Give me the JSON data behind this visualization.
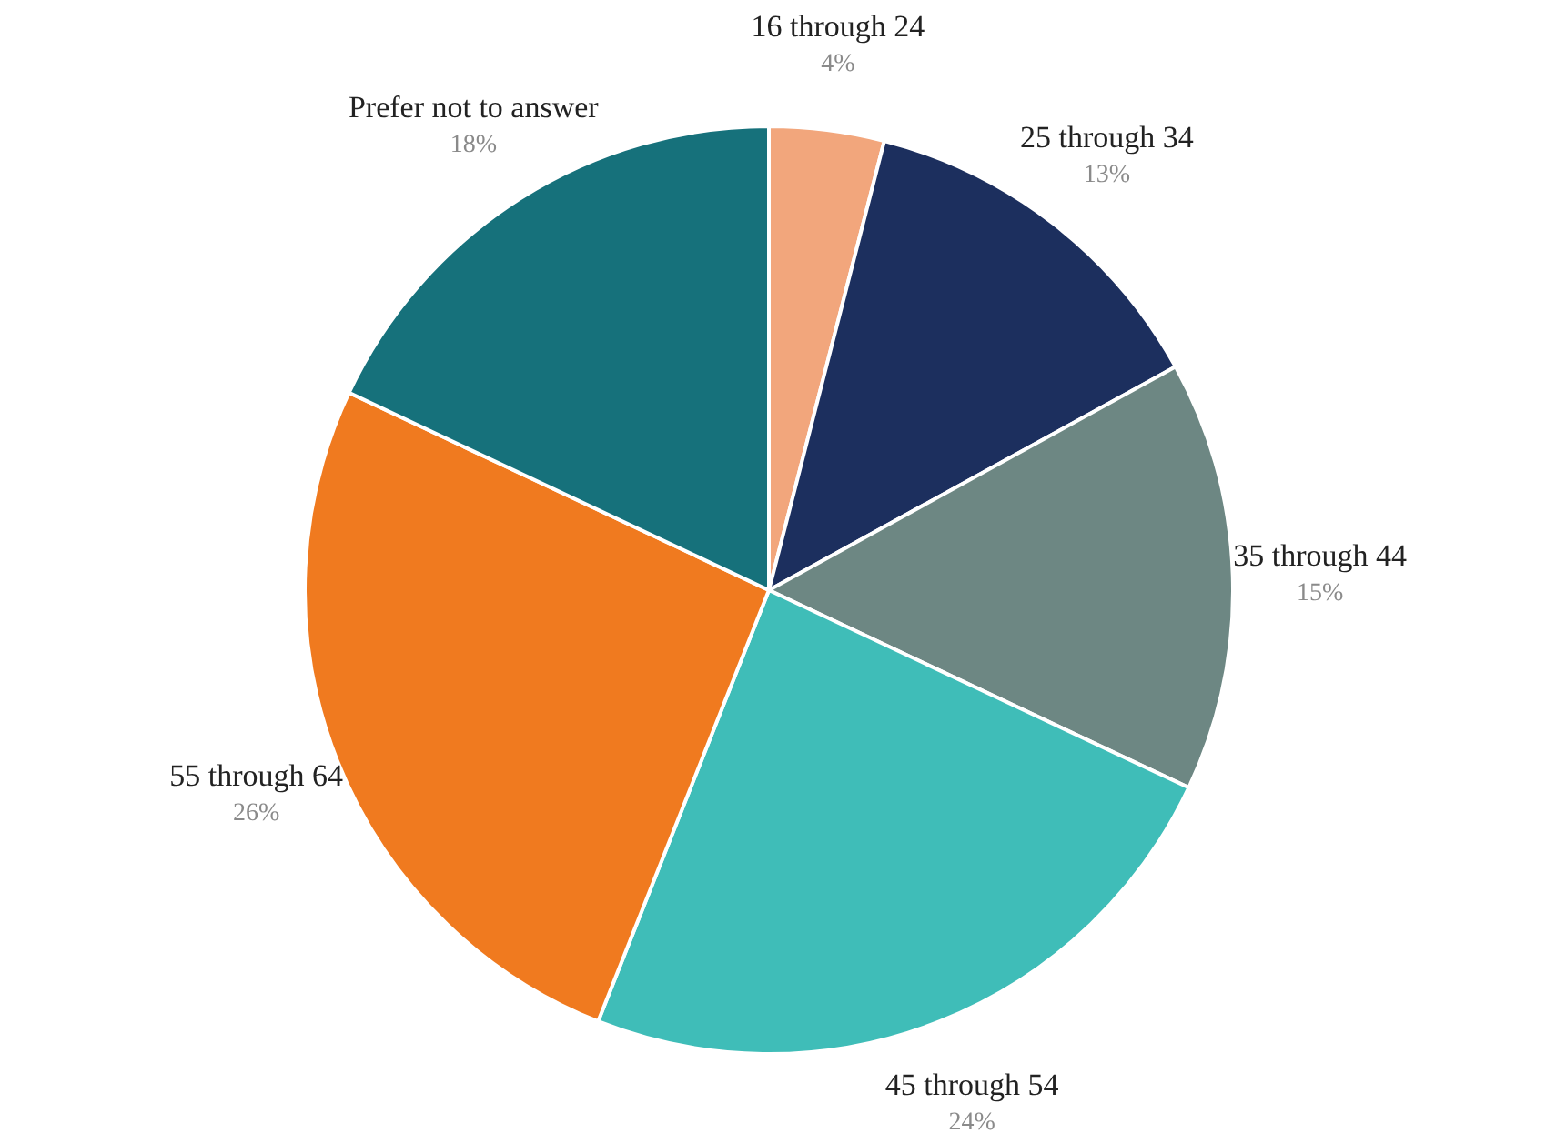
{
  "chart_data": {
    "type": "pie",
    "categories": [
      "16 through 24",
      "25 through 34",
      "35 through 44",
      "45 through 54",
      "55 through 64",
      "Prefer not to answer"
    ],
    "values": [
      4,
      13,
      15,
      24,
      26,
      18
    ],
    "value_labels": [
      "4%",
      "13%",
      "15%",
      "24%",
      "26%",
      "18%"
    ],
    "colors": [
      "#f2a67c",
      "#1c2f5e",
      "#6d8783",
      "#3fbdb8",
      "#f07a1f",
      "#16717b"
    ],
    "legend": false
  }
}
